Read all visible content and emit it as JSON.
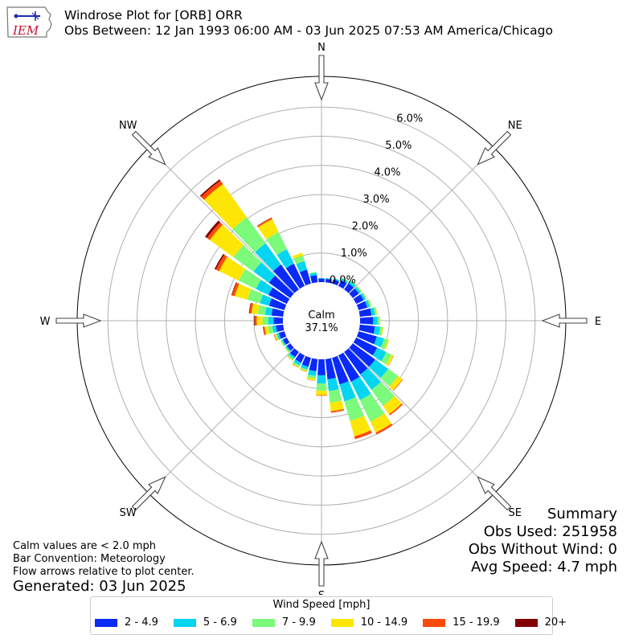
{
  "header": {
    "title": "Windrose Plot for [ORB] ORR",
    "subtitle": "Obs Between: 12 Jan 1993 06:00 AM - 03 Jun 2025 07:53 AM America/Chicago",
    "logo_text": "IEM"
  },
  "summary": {
    "heading": "Summary",
    "obs_used": "Obs Used: 251958",
    "obs_without_wind": "Obs Without Wind: 0",
    "avg_speed": "Avg Speed: 4.7 mph"
  },
  "notes": {
    "calm": "Calm values are < 2.0 mph",
    "convention": "Bar Convention: Meteorology",
    "flow": "Flow arrows relative to plot center.",
    "generated": "Generated: 03 Jun 2025"
  },
  "colors": {
    "bins": [
      "#0a2af8",
      "#04d5f0",
      "#7bfa7b",
      "#fde606",
      "#fe4a08",
      "#800000"
    ],
    "grid": "#b0b0b0"
  },
  "chart_data": {
    "type": "windrose",
    "calm_label": "Calm",
    "calm_value": "37.1%",
    "compass_labels": [
      "N",
      "NE",
      "E",
      "SE",
      "S",
      "SW",
      "W",
      "NW"
    ],
    "radial_ticks": [
      "0.0%",
      "1.0%",
      "2.0%",
      "3.0%",
      "4.0%",
      "5.0%",
      "6.0%"
    ],
    "radial_range": [
      0,
      6.5
    ],
    "legend_title": "Wind Speed [mph]",
    "bins": [
      "2 - 4.9",
      "5 - 6.9",
      "7 - 9.9",
      "10 - 14.9",
      "15 - 19.9",
      "20+"
    ],
    "directions": [
      0,
      10,
      20,
      30,
      40,
      50,
      60,
      70,
      80,
      90,
      100,
      110,
      120,
      130,
      140,
      150,
      160,
      170,
      180,
      190,
      200,
      210,
      220,
      230,
      240,
      250,
      260,
      270,
      280,
      290,
      300,
      310,
      320,
      330,
      340,
      350
    ],
    "frequencies": [
      [
        0.12,
        0.02,
        0,
        0,
        0,
        0
      ],
      [
        0.12,
        0.03,
        0,
        0,
        0,
        0
      ],
      [
        0.15,
        0.04,
        0.01,
        0,
        0,
        0
      ],
      [
        0.22,
        0.07,
        0.03,
        0,
        0,
        0
      ],
      [
        0.26,
        0.09,
        0.04,
        0.01,
        0,
        0
      ],
      [
        0.26,
        0.08,
        0.04,
        0.01,
        0,
        0
      ],
      [
        0.28,
        0.08,
        0.04,
        0.01,
        0,
        0
      ],
      [
        0.31,
        0.09,
        0.05,
        0.02,
        0,
        0
      ],
      [
        0.4,
        0.12,
        0.06,
        0.02,
        0,
        0
      ],
      [
        0.45,
        0.15,
        0.07,
        0.02,
        0,
        0
      ],
      [
        0.52,
        0.18,
        0.08,
        0.03,
        0,
        0
      ],
      [
        0.65,
        0.26,
        0.13,
        0.05,
        0,
        0
      ],
      [
        0.8,
        0.35,
        0.2,
        0.08,
        0.01,
        0
      ],
      [
        0.95,
        0.55,
        0.42,
        0.18,
        0.02,
        0
      ],
      [
        0.95,
        0.65,
        0.68,
        0.35,
        0.05,
        0
      ],
      [
        1.0,
        0.7,
        0.82,
        0.42,
        0.07,
        0
      ],
      [
        0.95,
        0.6,
        0.7,
        0.55,
        0.1,
        0
      ],
      [
        0.7,
        0.4,
        0.4,
        0.3,
        0.05,
        0
      ],
      [
        0.55,
        0.28,
        0.25,
        0.15,
        0.02,
        0
      ],
      [
        0.42,
        0.16,
        0.1,
        0.06,
        0.01,
        0
      ],
      [
        0.32,
        0.1,
        0.05,
        0.03,
        0.01,
        0
      ],
      [
        0.28,
        0.1,
        0.06,
        0.03,
        0.01,
        0
      ],
      [
        0.22,
        0.07,
        0.06,
        0.03,
        0,
        0
      ],
      [
        0.15,
        0.05,
        0.03,
        0.02,
        0,
        0
      ],
      [
        0.15,
        0.05,
        0.03,
        0.02,
        0,
        0
      ],
      [
        0.2,
        0.07,
        0.05,
        0.04,
        0.02,
        0
      ],
      [
        0.25,
        0.12,
        0.15,
        0.12,
        0.05,
        0.01
      ],
      [
        0.32,
        0.18,
        0.2,
        0.2,
        0.07,
        0.02
      ],
      [
        0.4,
        0.22,
        0.25,
        0.22,
        0.07,
        0.02
      ],
      [
        0.55,
        0.32,
        0.45,
        0.45,
        0.1,
        0.02
      ],
      [
        0.7,
        0.48,
        0.65,
        0.75,
        0.12,
        0.05
      ],
      [
        0.9,
        0.65,
        0.85,
        1.0,
        0.12,
        0.08
      ],
      [
        1.05,
        0.9,
        1.1,
        1.4,
        0.15,
        0.05
      ],
      [
        0.85,
        0.55,
        0.65,
        0.5,
        0.05,
        0.01
      ],
      [
        0.5,
        0.3,
        0.2,
        0.1,
        0,
        0
      ],
      [
        0.25,
        0.08,
        0.03,
        0,
        0,
        0
      ]
    ]
  }
}
